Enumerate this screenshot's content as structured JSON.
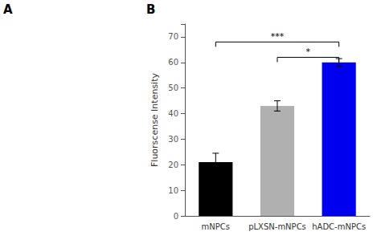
{
  "chart_data": {
    "type": "bar",
    "categories": [
      "mNPCs",
      "pLXSN-mNPCs",
      "hADC-mNPCs"
    ],
    "values": [
      21.0,
      43.0,
      60.0
    ],
    "errors": [
      3.5,
      2.0,
      1.5
    ],
    "colors": [
      "#000000",
      "#b0b0b0",
      "#0000ee"
    ],
    "ylabel": "Fluorscense Intensity",
    "ylim": [
      0,
      75
    ],
    "yticks": [
      0,
      10,
      20,
      30,
      40,
      50,
      60,
      70
    ],
    "grid": false,
    "annotations": [
      {
        "text": "A"
      },
      {
        "text": "B"
      },
      {
        "text": "***",
        "x1": "mNPCs",
        "x2": "hADC-mNPCs",
        "y": 68
      },
      {
        "text": "*",
        "x1": "pLXSN-mNPCs",
        "x2": "hADC-mNPCs",
        "y": 62
      }
    ]
  }
}
